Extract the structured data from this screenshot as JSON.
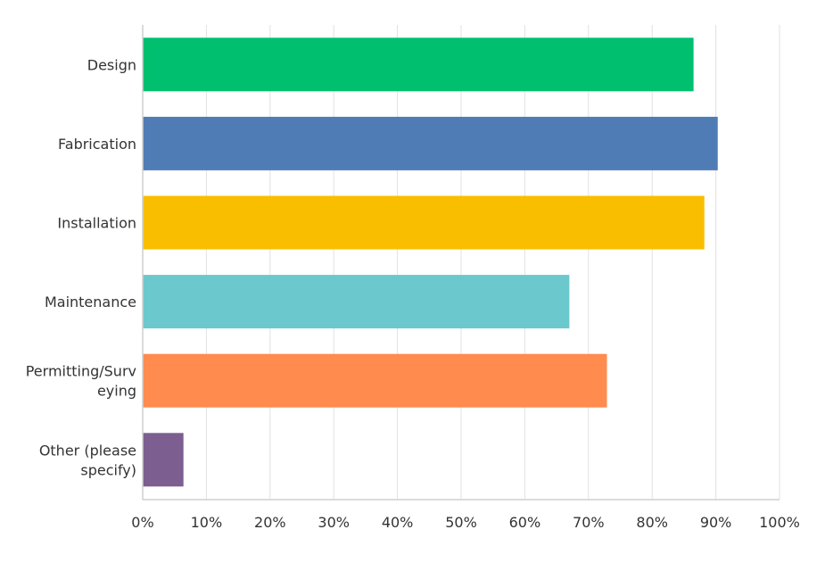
{
  "chart_data": {
    "type": "bar",
    "orientation": "horizontal",
    "title": "",
    "xlabel": "",
    "ylabel": "",
    "categories": [
      [
        "Design"
      ],
      [
        "Fabrication"
      ],
      [
        "Installation"
      ],
      [
        "Maintenance"
      ],
      [
        "Permitting/Surv",
        "eying"
      ],
      [
        "Other (please",
        "specify)"
      ]
    ],
    "values": [
      86.5,
      90.3,
      88.2,
      67.0,
      72.9,
      6.4
    ],
    "colors": [
      "#00bf6f",
      "#507cb6",
      "#f9be00",
      "#6bc8cd",
      "#ff8b4f",
      "#7d5e90"
    ],
    "xlim": [
      0,
      100
    ],
    "x_ticks": [
      "0%",
      "10%",
      "20%",
      "30%",
      "40%",
      "50%",
      "60%",
      "70%",
      "80%",
      "90%",
      "100%"
    ],
    "grid": "vertical",
    "legend": "none"
  }
}
